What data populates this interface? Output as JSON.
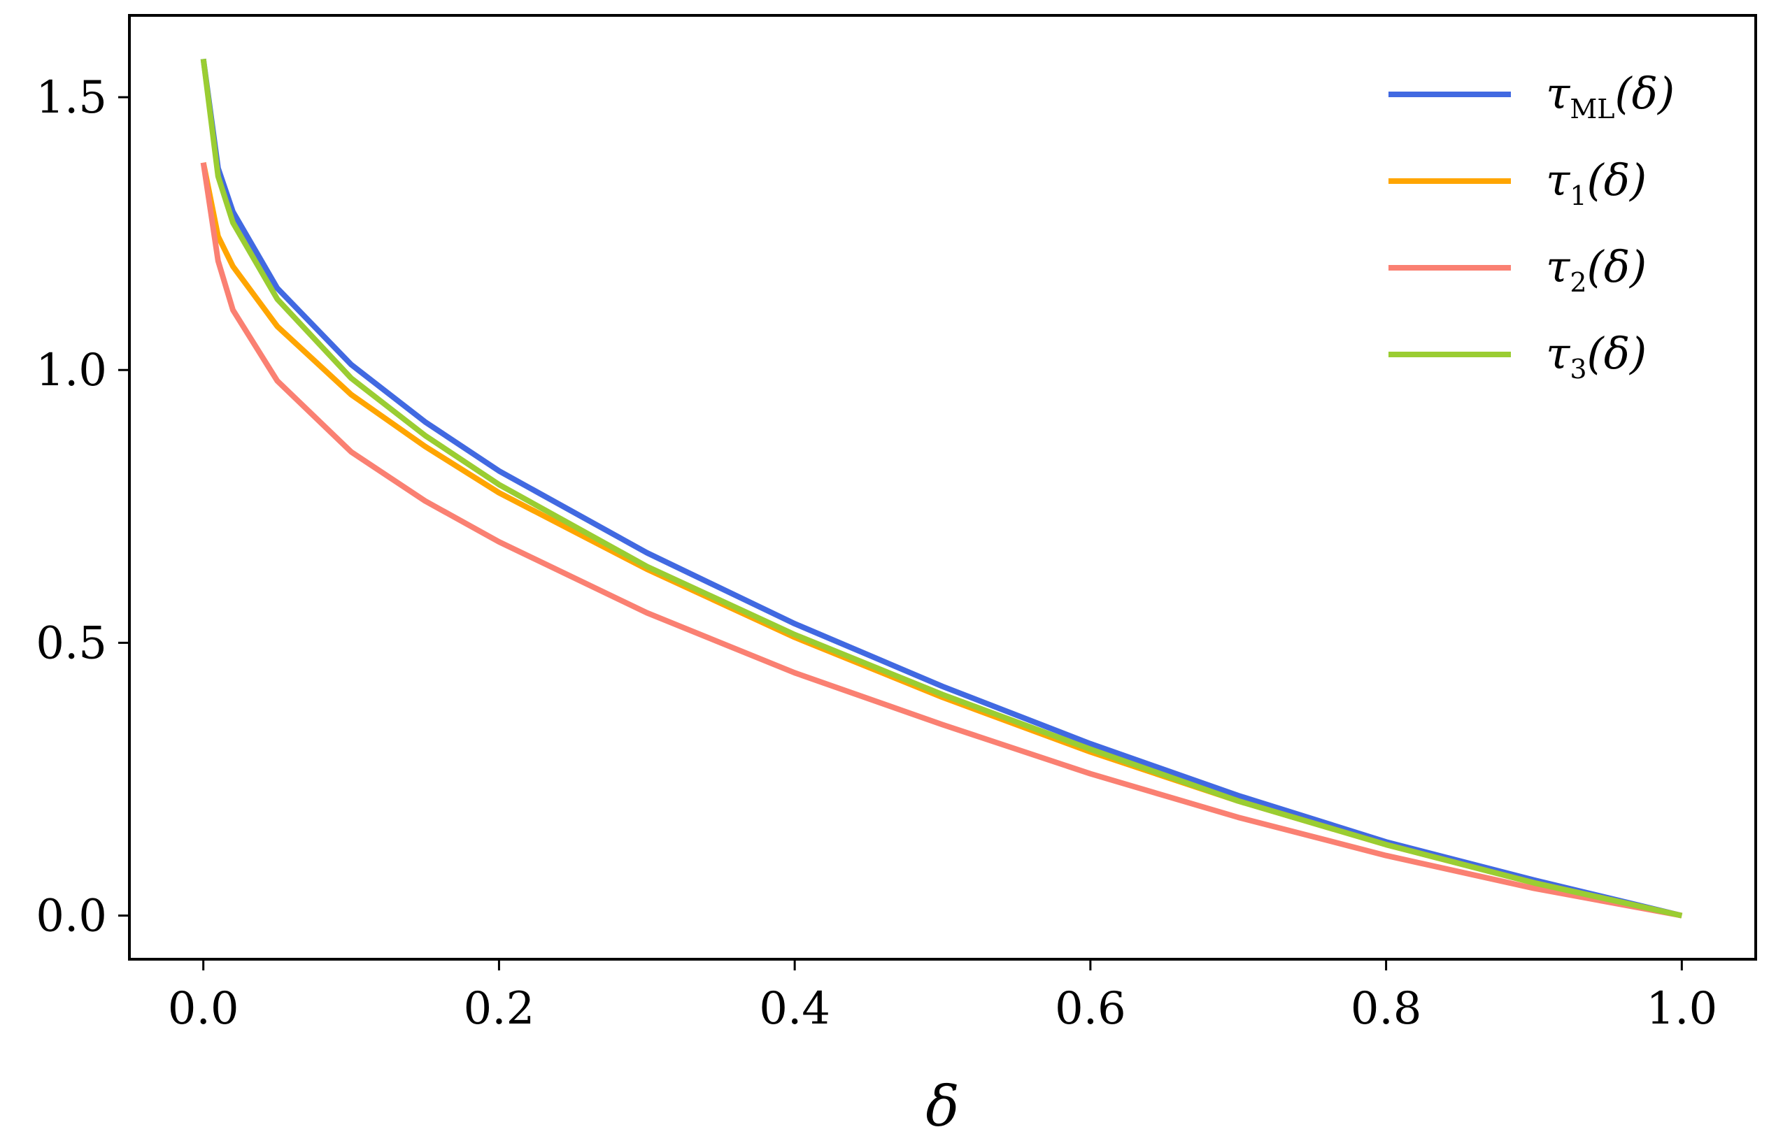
{
  "chart_data": {
    "type": "line",
    "title": "",
    "xlabel": "δ",
    "ylabel": "",
    "xlim": [
      -0.05,
      1.05
    ],
    "ylim": [
      -0.08,
      1.65
    ],
    "xticks": [
      0.0,
      0.2,
      0.4,
      0.6,
      0.8,
      1.0
    ],
    "xtick_labels": [
      "0.0",
      "0.2",
      "0.4",
      "0.6",
      "0.8",
      "1.0"
    ],
    "yticks": [
      0.0,
      0.5,
      1.0,
      1.5
    ],
    "ytick_labels": [
      "0.0",
      "0.5",
      "1.0",
      "1.5"
    ],
    "grid": false,
    "legend_position": "top-right",
    "x": [
      0.0,
      0.01,
      0.02,
      0.05,
      0.1,
      0.15,
      0.2,
      0.3,
      0.4,
      0.5,
      0.6,
      0.7,
      0.8,
      0.9,
      1.0
    ],
    "series": [
      {
        "name": "τML(δ)",
        "label_main": "τ",
        "label_sub": "ML",
        "label_tail": "(δ)",
        "color": "#4169e1",
        "values": [
          1.57,
          1.37,
          1.29,
          1.15,
          1.01,
          0.905,
          0.815,
          0.665,
          0.535,
          0.42,
          0.315,
          0.22,
          0.135,
          0.065,
          0.0
        ]
      },
      {
        "name": "τ1(δ)",
        "label_main": "τ",
        "label_sub": "1",
        "label_tail": "(δ)",
        "color": "#ffa500",
        "values": [
          1.38,
          1.245,
          1.19,
          1.08,
          0.955,
          0.86,
          0.775,
          0.635,
          0.51,
          0.4,
          0.3,
          0.21,
          0.13,
          0.06,
          0.0
        ]
      },
      {
        "name": "τ2(δ)",
        "label_main": "τ",
        "label_sub": "2",
        "label_tail": "(δ)",
        "color": "#fa8072",
        "values": [
          1.38,
          1.2,
          1.11,
          0.98,
          0.85,
          0.76,
          0.685,
          0.555,
          0.445,
          0.35,
          0.26,
          0.18,
          0.11,
          0.05,
          0.0
        ]
      },
      {
        "name": "τ3(δ)",
        "label_main": "τ",
        "label_sub": "3",
        "label_tail": "(δ)",
        "color": "#9acd32",
        "values": [
          1.57,
          1.355,
          1.27,
          1.13,
          0.985,
          0.88,
          0.79,
          0.64,
          0.515,
          0.405,
          0.305,
          0.21,
          0.13,
          0.06,
          0.0
        ]
      }
    ]
  }
}
